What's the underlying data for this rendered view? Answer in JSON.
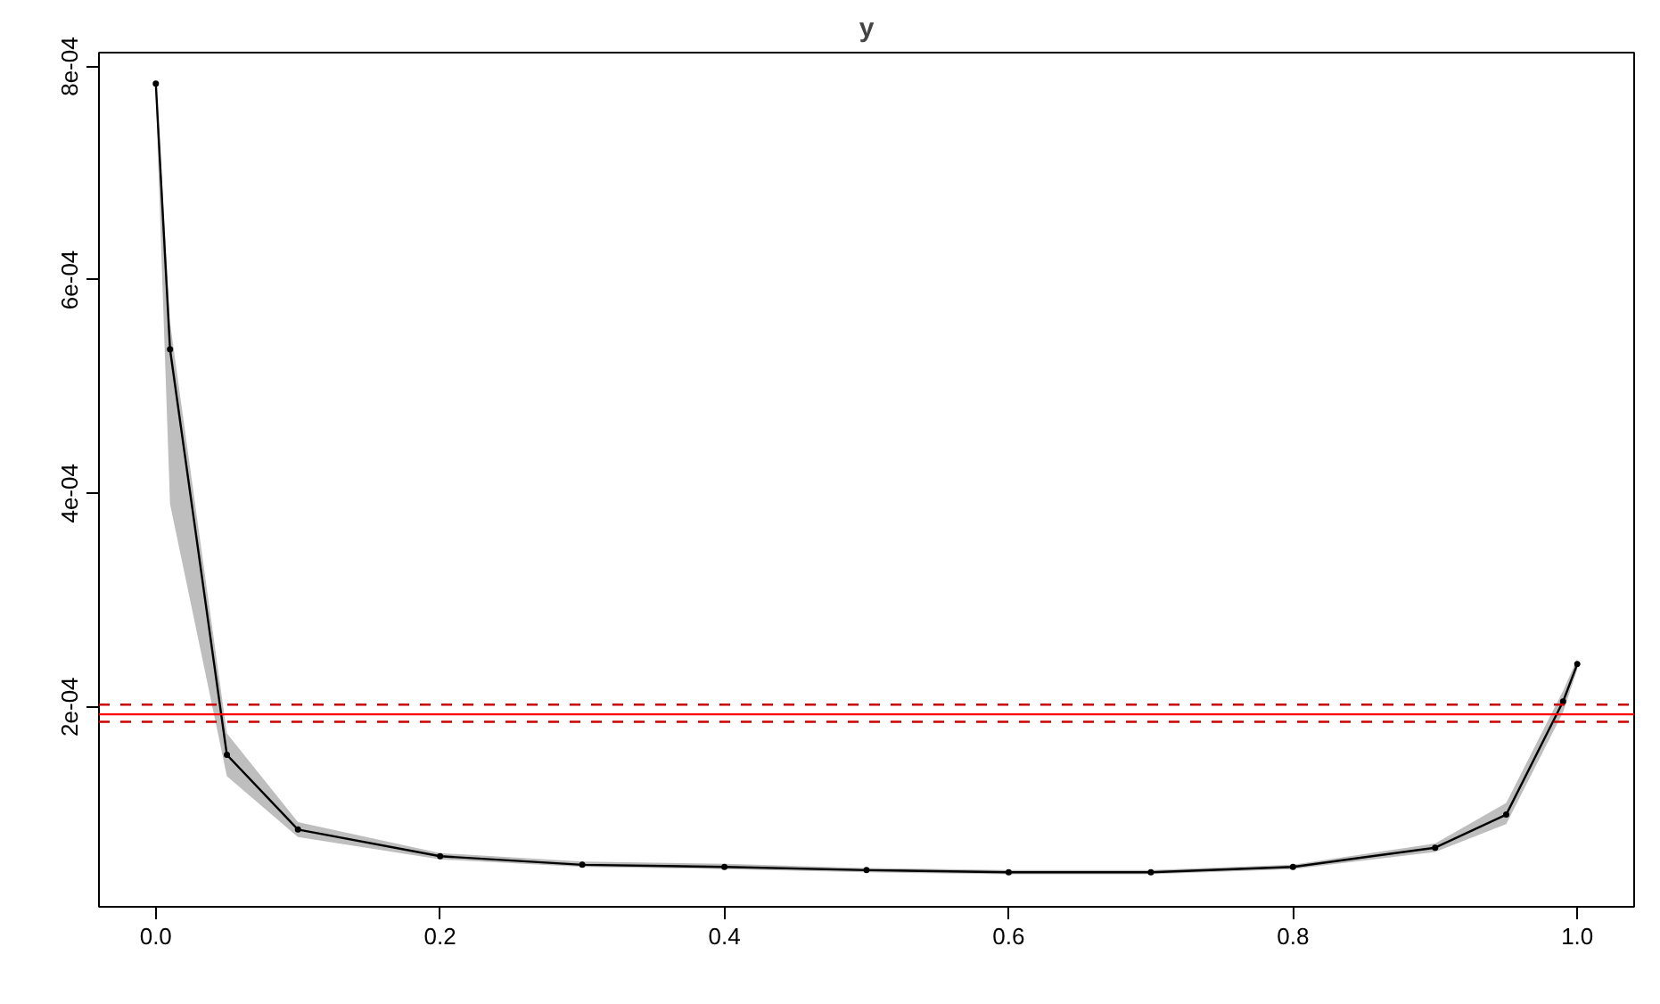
{
  "chart_data": {
    "type": "line",
    "title": "y",
    "x": [
      0,
      0.01,
      0.05,
      0.1,
      0.2,
      0.3,
      0.4,
      0.5,
      0.6,
      0.7,
      0.8,
      0.9,
      0.95,
      0.99,
      1.0
    ],
    "series": [
      {
        "color": "#000000",
        "values": [
          0.000784,
          0.000535,
          0.000155,
          8.5e-05,
          6e-05,
          5.2e-05,
          5e-05,
          4.7e-05,
          4.5e-05,
          4.5e-05,
          5e-05,
          6.8e-05,
          9.9e-05,
          0.000205,
          0.00024
        ],
        "lower": [
          0.000775,
          0.00039,
          0.000135,
          7.8e-05,
          5.7e-05,
          5e-05,
          4.8e-05,
          4.5e-05,
          4.3e-05,
          4.3e-05,
          4.8e-05,
          6.4e-05,
          9e-05,
          0.000195,
          0.000235
        ],
        "upper": [
          0.00079,
          0.00056,
          0.000175,
          9.2e-05,
          6.3e-05,
          5.5e-05,
          5.3e-05,
          4.9e-05,
          4.7e-05,
          4.7e-05,
          5.2e-05,
          7.2e-05,
          0.00011,
          0.000215,
          0.000245
        ]
      }
    ],
    "xlim": [
      -0.04,
      1.04
    ],
    "ylim": [
      1.26e-05,
      0.000813
    ],
    "xticks": [
      {
        "value": 0,
        "label": "0.0"
      },
      0.2,
      0.4,
      0.6,
      0.8,
      {
        "value": 1,
        "label": "1.0"
      }
    ],
    "yticks": [
      {
        "value": 0.0002,
        "label": "2e-04"
      },
      {
        "value": 0.0004,
        "label": "4e-04"
      },
      {
        "value": 0.0006,
        "label": "6e-04"
      },
      {
        "value": 0.0008,
        "label": "8e-04"
      }
    ],
    "ref_lines": [
      {
        "axis": "y",
        "value": 0.000193,
        "color": "#ff0000",
        "line_style": "solid"
      },
      {
        "axis": "y",
        "value": 0.000202,
        "color": "#cc0000",
        "line_style": "dashed"
      },
      {
        "axis": "y",
        "value": 0.000186,
        "color": "#cc0000",
        "line_style": "dashed"
      }
    ],
    "marker": "circle",
    "grid": false
  }
}
